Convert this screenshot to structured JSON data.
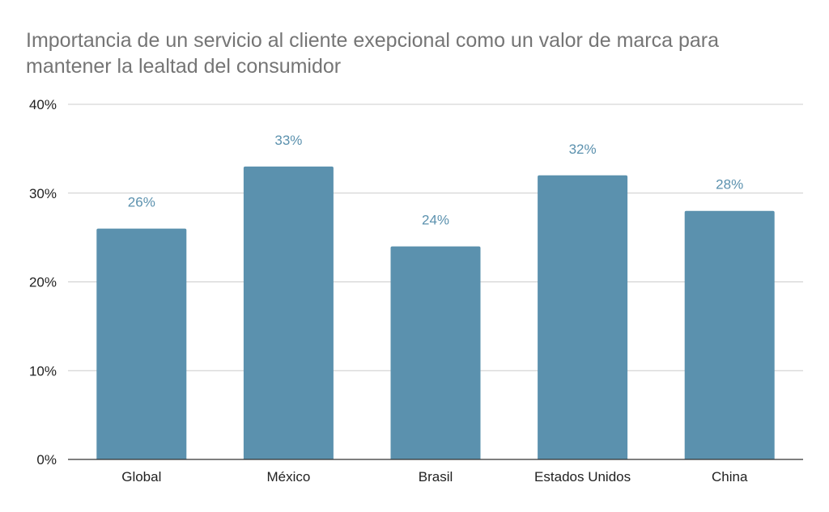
{
  "chart_data": {
    "type": "bar",
    "title": "Importancia de un servicio al cliente exepcional como un valor de marca para mantener la lealtad del consumidor",
    "categories": [
      "Global",
      "México",
      "Brasil",
      "Estados Unidos",
      "China"
    ],
    "values": [
      26,
      33,
      24,
      32,
      28
    ],
    "data_labels": [
      "26%",
      "33%",
      "24%",
      "32%",
      "28%"
    ],
    "xlabel": "",
    "ylabel": "",
    "ylim": [
      0,
      40
    ],
    "yticks": [
      0,
      10,
      20,
      30,
      40
    ],
    "ytick_labels": [
      "0%",
      "10%",
      "20%",
      "30%",
      "40%"
    ],
    "grid": true,
    "legend": "none",
    "colors": {
      "bar": "#5b91ae",
      "data_label": "#5b91ae",
      "grid": "#cccccc",
      "axis": "#333333",
      "title": "#757575"
    }
  }
}
